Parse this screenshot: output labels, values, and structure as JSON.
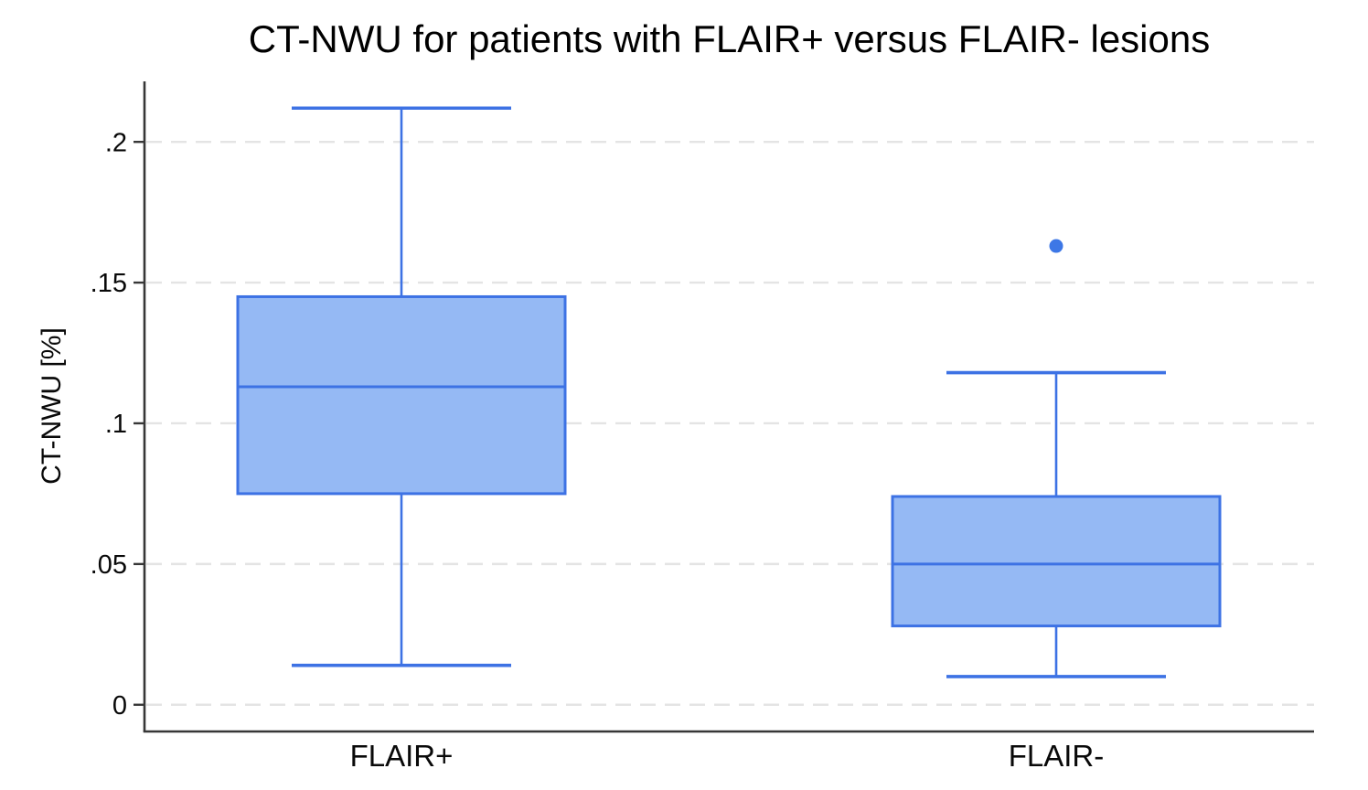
{
  "chart_data": {
    "type": "box",
    "title": "CT-NWU for patients with FLAIR+ versus FLAIR- lesions",
    "ylabel": "CT-NWU [%]",
    "xlabel": "",
    "categories": [
      "FLAIR+",
      "FLAIR-"
    ],
    "yticks": [
      {
        "value": 0,
        "label": "0"
      },
      {
        "value": 0.05,
        "label": ".05"
      },
      {
        "value": 0.1,
        "label": ".1"
      },
      {
        "value": 0.15,
        "label": ".15"
      },
      {
        "value": 0.2,
        "label": ".2"
      }
    ],
    "ylim": [
      -0.0095,
      0.2215
    ],
    "grid": "horizontal-dashed",
    "legend": "none",
    "boxes": [
      {
        "category": "FLAIR+",
        "lower_whisker": 0.014,
        "q1": 0.075,
        "median": 0.113,
        "q3": 0.145,
        "upper_whisker": 0.212,
        "outliers": []
      },
      {
        "category": "FLAIR-",
        "lower_whisker": 0.01,
        "q1": 0.028,
        "median": 0.05,
        "q3": 0.074,
        "upper_whisker": 0.118,
        "outliers": [
          0.163
        ]
      }
    ],
    "colors": {
      "box_fill": "#95b9f4",
      "box_stroke": "#3d72e4",
      "outlier": "#3d77e6",
      "grid": "#e4e4e4",
      "axis": "#373737",
      "text": "#000000"
    }
  }
}
